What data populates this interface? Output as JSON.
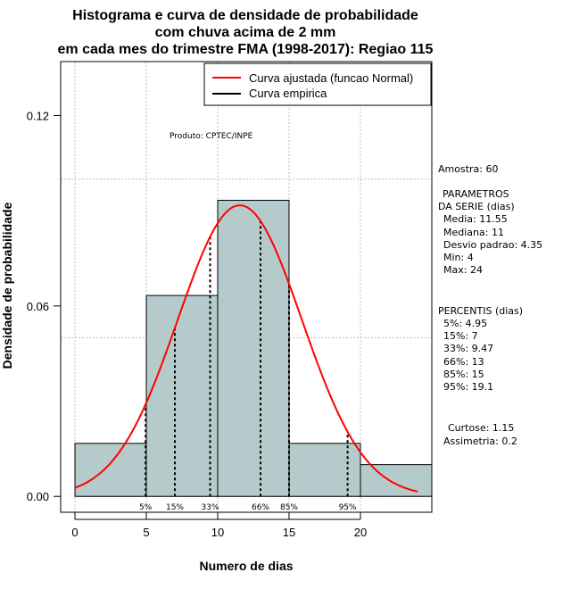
{
  "chart_data": {
    "type": "bar",
    "title": [
      "Histograma e curva de densidade de probabilidade",
      "com chuva acima de 2 mm",
      "em cada mes do trimestre FMA (1998-2017): Regiao 115"
    ],
    "xlabel": "Numero de dias",
    "ylabel": "Densidade de probabilidade",
    "xlim": [
      -1,
      25
    ],
    "ylim": [
      -0.005,
      0.137
    ],
    "x_ticks": [
      0,
      5,
      10,
      15,
      20
    ],
    "x_tick_labels": [
      "0",
      "5",
      "10",
      "15",
      "20"
    ],
    "y_ticks": [
      0.0,
      0.06,
      0.12
    ],
    "y_tick_labels": [
      "0.00",
      "0.06",
      "0.12"
    ],
    "grid_x": [
      0,
      5,
      10,
      15,
      20
    ],
    "grid_y": [
      0.05,
      0.1
    ],
    "histogram": {
      "bins": [
        [
          0,
          5
        ],
        [
          5,
          10
        ],
        [
          10,
          15
        ],
        [
          15,
          20
        ],
        [
          20,
          25
        ]
      ],
      "density": [
        0.0167,
        0.0633,
        0.0933,
        0.0167,
        0.01
      ],
      "color": "#b5cbcb"
    },
    "normal_curve": {
      "mean": 11.55,
      "sd": 4.35,
      "x_range": [
        0,
        24
      ],
      "color": "#ff0000"
    },
    "percentiles": [
      {
        "x": 4.95,
        "label": "5%"
      },
      {
        "x": 7,
        "label": "15%"
      },
      {
        "x": 9.47,
        "label": "33%"
      },
      {
        "x": 13,
        "label": "66%"
      },
      {
        "x": 15,
        "label": "85%"
      },
      {
        "x": 19.1,
        "label": "95%"
      }
    ],
    "legend": [
      {
        "label": "Curva ajustada (funcao Normal)",
        "color": "#ff0000"
      },
      {
        "label": "Curva empirica",
        "color": "#000000"
      }
    ],
    "legend_position": "top-right",
    "annotation": "Produto: CPTEC/INPE"
  },
  "side_panel": [
    "Amostra: 60",
    "PARAMETROS",
    "DA SERIE (dias)",
    "Media: 11.55",
    "Mediana: 11",
    "Desvio padrao: 4.35",
    "Min: 4",
    "Max: 24",
    "PERCENTIS (dias)",
    "5%: 4.95",
    "15%: 7",
    "33%: 9.47",
    "66%: 13",
    "85%: 15",
    "95%: 19.1",
    "Curtose: 1.15",
    "Assimetria: 0.2"
  ]
}
